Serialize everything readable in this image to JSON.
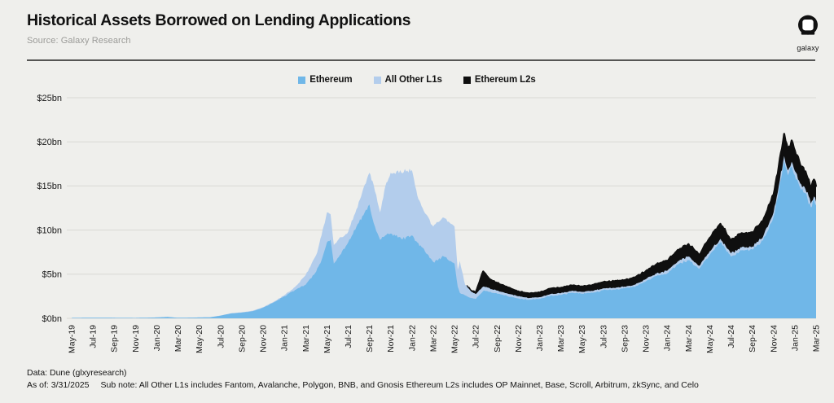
{
  "header": {
    "title": "Historical Assets Borrowed on Lending Applications",
    "source": "Source: Galaxy Research",
    "logo_text": "galaxy"
  },
  "footer": {
    "data_line": "Data: Dune (glxyresearch)",
    "as_of": "As of: 3/31/2025",
    "sub_note": "Sub note: All Other L1s includes Fantom, Avalanche, Polygon, BNB, and Gnosis Ethereum L2s includes OP Mainnet, Base, Scroll, Arbitrum, zkSync, and Celo"
  },
  "colors": {
    "background": "#efefec",
    "gridline": "#d8d8d4",
    "axis_text": "#1a1a1a",
    "divider": "#555554"
  },
  "chart_data": {
    "type": "area",
    "stacked": true,
    "title": "Historical Assets Borrowed on Lending Applications",
    "unit": "USD billions",
    "ylim": [
      0,
      25
    ],
    "y_tick_labels": [
      "$0bn",
      "$5bn",
      "$10bn",
      "$15bn",
      "$20bn",
      "$25bn"
    ],
    "x_tick_labels": [
      "May-19",
      "Jul-19",
      "Sep-19",
      "Nov-19",
      "Jan-20",
      "Mar-20",
      "May-20",
      "Jul-20",
      "Sep-20",
      "Nov-20",
      "Jan-21",
      "Mar-21",
      "May-21",
      "Jul-21",
      "Sep-21",
      "Nov-21",
      "Jan-22",
      "Mar-22",
      "May-22",
      "Jul-22",
      "Sep-22",
      "Nov-22",
      "Jan-23",
      "Mar-23",
      "May-23",
      "Jul-23",
      "Sep-23",
      "Nov-23",
      "Jan-24",
      "Mar-24",
      "May-24",
      "Jul-24",
      "Sep-24",
      "Nov-24",
      "Jan-25",
      "Mar-25"
    ],
    "x_tick_step_months": 2,
    "x_domain_months": [
      0,
      70
    ],
    "grid": "horizontal",
    "legend_position": "top-center",
    "series": [
      {
        "name": "Ethereum",
        "color": "#70b7e8"
      },
      {
        "name": "All Other L1s",
        "color": "#b3cdec"
      },
      {
        "name": "Ethereum L2s",
        "color": "#0f0f0f"
      }
    ],
    "points_columns": [
      "months_since_May19",
      "ethereum_bn",
      "all_other_l1s_bn",
      "ethereum_l2s_bn"
    ],
    "points": [
      [
        0,
        0.05,
        0,
        0
      ],
      [
        2,
        0.07,
        0,
        0
      ],
      [
        4,
        0.06,
        0,
        0
      ],
      [
        6,
        0.05,
        0,
        0
      ],
      [
        8,
        0.1,
        0,
        0
      ],
      [
        9,
        0.16,
        0,
        0
      ],
      [
        10,
        0.06,
        0,
        0
      ],
      [
        11,
        0.08,
        0,
        0
      ],
      [
        12,
        0.1,
        0,
        0
      ],
      [
        13,
        0.12,
        0,
        0
      ],
      [
        14,
        0.3,
        0.02,
        0
      ],
      [
        15,
        0.55,
        0.03,
        0
      ],
      [
        16,
        0.65,
        0.04,
        0
      ],
      [
        17,
        0.8,
        0.05,
        0
      ],
      [
        18,
        1.2,
        0.06,
        0
      ],
      [
        19,
        1.8,
        0.08,
        0
      ],
      [
        20,
        2.5,
        0.12,
        0
      ],
      [
        21,
        3.2,
        0.35,
        0
      ],
      [
        22,
        3.8,
        1.1,
        0
      ],
      [
        23,
        5.3,
        1.9,
        0
      ],
      [
        23.5,
        6.6,
        2.8,
        0
      ],
      [
        24,
        8.6,
        3.4,
        0
      ],
      [
        24.35,
        8.9,
        2.9,
        0
      ],
      [
        24.65,
        6.2,
        2.1,
        0
      ],
      [
        25,
        6.8,
        2.0,
        0
      ],
      [
        26,
        8.6,
        1.2,
        0
      ],
      [
        27,
        10.8,
        2.4,
        0
      ],
      [
        28,
        12.9,
        3.6,
        0
      ],
      [
        28.4,
        10.8,
        4.3,
        0
      ],
      [
        29,
        8.9,
        3.1,
        0
      ],
      [
        29.5,
        9.4,
        5.6,
        0
      ],
      [
        30,
        9.6,
        6.9,
        0
      ],
      [
        31,
        9.0,
        7.5,
        0
      ],
      [
        32,
        9.4,
        7.4,
        0
      ],
      [
        32.5,
        8.6,
        5.3,
        0
      ],
      [
        33,
        8.0,
        4.5,
        0
      ],
      [
        34,
        6.4,
        4.0,
        0
      ],
      [
        35,
        7.0,
        4.4,
        0
      ],
      [
        36,
        6.2,
        4.2,
        0
      ],
      [
        36.3,
        3.6,
        1.9,
        0
      ],
      [
        36.5,
        2.9,
        3.6,
        0
      ],
      [
        37,
        2.6,
        1.2,
        0
      ],
      [
        37.6,
        2.3,
        0.7,
        0.1
      ],
      [
        38,
        2.2,
        0.55,
        0.2
      ],
      [
        38.7,
        3.1,
        0.5,
        1.7
      ],
      [
        39,
        3.1,
        0.45,
        1.3
      ],
      [
        39.5,
        2.9,
        0.4,
        1.0
      ],
      [
        40,
        2.8,
        0.35,
        0.85
      ],
      [
        41,
        2.5,
        0.3,
        0.7
      ],
      [
        42,
        2.25,
        0.25,
        0.55
      ],
      [
        43,
        2.1,
        0.2,
        0.5
      ],
      [
        44,
        2.2,
        0.2,
        0.5
      ],
      [
        45,
        2.55,
        0.2,
        0.6
      ],
      [
        46,
        2.65,
        0.2,
        0.6
      ],
      [
        47,
        2.9,
        0.2,
        0.62
      ],
      [
        48,
        2.8,
        0.2,
        0.6
      ],
      [
        49,
        2.9,
        0.2,
        0.68
      ],
      [
        50,
        3.2,
        0.2,
        0.7
      ],
      [
        51,
        3.25,
        0.2,
        0.72
      ],
      [
        52,
        3.4,
        0.2,
        0.72
      ],
      [
        53,
        3.6,
        0.22,
        0.78
      ],
      [
        54,
        4.2,
        0.25,
        0.9
      ],
      [
        55,
        4.8,
        0.3,
        1.0
      ],
      [
        56,
        5.1,
        0.3,
        1.1
      ],
      [
        57,
        6.1,
        0.35,
        1.3
      ],
      [
        58,
        6.6,
        0.4,
        1.4
      ],
      [
        59,
        5.6,
        0.35,
        1.2
      ],
      [
        60,
        7.2,
        0.4,
        1.5
      ],
      [
        61,
        8.6,
        0.4,
        1.7
      ],
      [
        61.5,
        7.8,
        0.38,
        1.6
      ],
      [
        62,
        7.0,
        0.35,
        1.5
      ],
      [
        63,
        7.7,
        0.35,
        1.6
      ],
      [
        64,
        7.8,
        0.35,
        1.6
      ],
      [
        65,
        8.8,
        0.4,
        1.8
      ],
      [
        66,
        11.5,
        0.5,
        2.0
      ],
      [
        66.5,
        14.5,
        0.55,
        2.2
      ],
      [
        67,
        17.8,
        0.6,
        2.5
      ],
      [
        67.35,
        16.2,
        0.55,
        2.3
      ],
      [
        67.7,
        17.2,
        0.55,
        2.4
      ],
      [
        68,
        16.2,
        0.5,
        2.3
      ],
      [
        68.5,
        14.8,
        0.5,
        2.1
      ],
      [
        69,
        14.2,
        0.45,
        2.0
      ],
      [
        69.5,
        12.6,
        0.4,
        1.8
      ],
      [
        69.8,
        13.4,
        0.42,
        1.9
      ],
      [
        70,
        12.8,
        0.4,
        1.7
      ]
    ]
  }
}
